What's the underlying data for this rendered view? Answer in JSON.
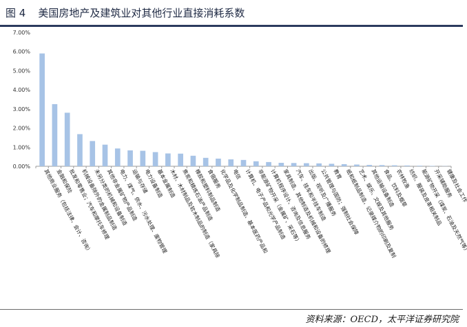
{
  "figure": {
    "number": "图 4",
    "title": "美国房地产及建筑业对其他行业直接消耗系数",
    "source": "资料来源：OECD，太平洋证券研究院"
  },
  "chart_data": {
    "type": "bar",
    "title": "",
    "xlabel": "",
    "ylabel": "",
    "ylim": [
      0,
      0.07
    ],
    "yticks": [
      "0.00%",
      "1.00%",
      "2.00%",
      "3.00%",
      "4.00%",
      "5.00%",
      "6.00%",
      "7.00%"
    ],
    "grid": false,
    "legend": "none",
    "bar_color": "#a7c3e6",
    "categories": [
      "其他商业服务（包括法律、会计、咨询）",
      "金融和保险",
      "批发和零售业；汽车和摩托车修理",
      "机械设备除外的金属制品制造",
      "未另分类的机械和设备制造",
      "其他非金属矿物产品制造",
      "电力、煤气、供水、污水处理、废物管理",
      "运输与存储",
      "电力设备制造",
      "基本金属制造",
      "木材、木材制品及软木制品的制造（家具除",
      "焦炭和精炼石油产品制造",
      "橡胶和塑料制品制造",
      "食宿服务",
      "化学品及化学制品制造、基本医药产品和",
      "电信",
      "计算机、电子产品和光学产品制造",
      "非能源矿物开采（金属矿、采石等）",
      "计算机程序设计、咨询及信息服务",
      "家具制造、其他制造及机械和设备的修理",
      "汽车、挂车和半挂车制造",
      "出版、视听及广播服务",
      "公共管理与国防；强制社会保障",
      "教育",
      "纸和纸制品制造，记录媒介物的印刷及复制",
      "艺术、娱乐、文娱及其他服务",
      "其他运输设备制造",
      "食品、饮料及烟草",
      "农林牧渔",
      "纺织、服装及皮革相关制品",
      "能源矿物开采（煤炭、石油及天然气等）",
      "开采辅助服务",
      "健康及社会工作"
    ],
    "values": [
      0.059,
      0.0325,
      0.028,
      0.0168,
      0.0132,
      0.0113,
      0.0093,
      0.0083,
      0.0081,
      0.0074,
      0.0067,
      0.0066,
      0.0055,
      0.0044,
      0.004,
      0.0036,
      0.0033,
      0.0026,
      0.0022,
      0.0018,
      0.0017,
      0.0016,
      0.0015,
      0.0013,
      0.0011,
      0.0009,
      0.0007,
      0.0006,
      0.0005,
      0.0004,
      0.0003,
      0.0002,
      0.0001
    ]
  }
}
